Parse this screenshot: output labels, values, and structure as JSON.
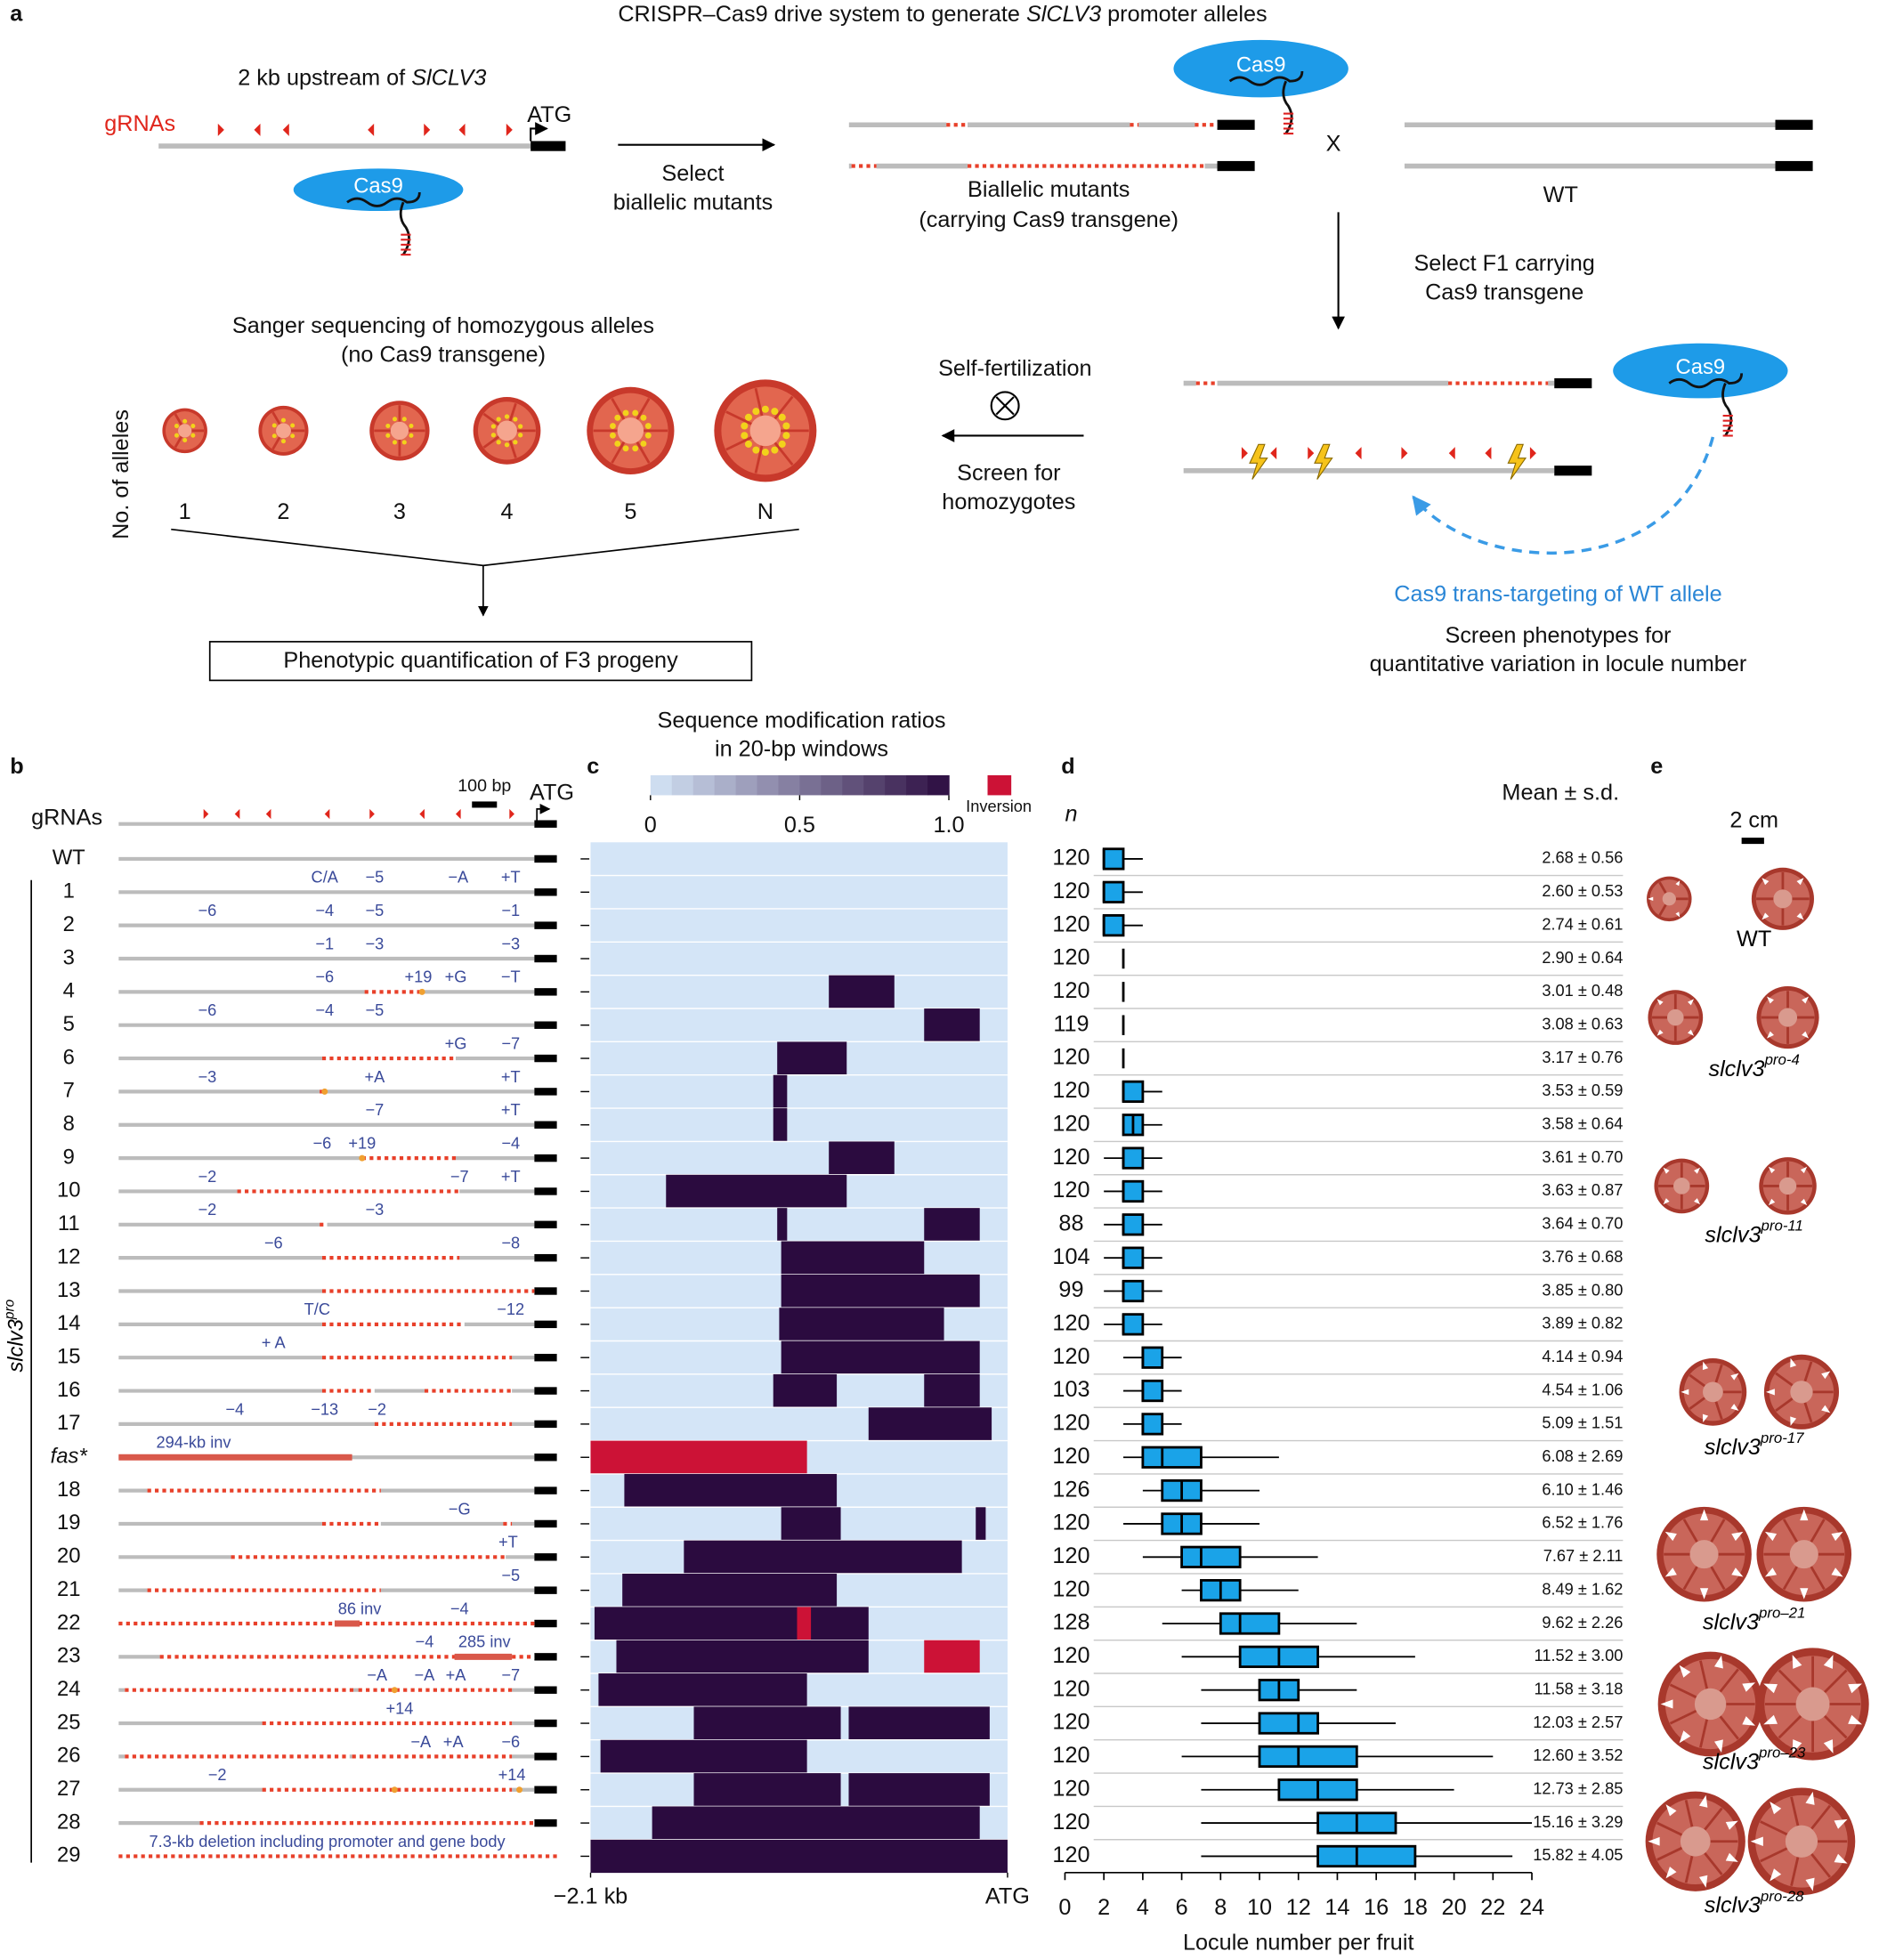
{
  "panel_a": {
    "label": "a",
    "title": [
      "CRISPR–Cas9 drive system to generate ",
      "SlCLV3",
      " promoter alleles"
    ],
    "upstream": [
      "2 kb upstream of ",
      "SlCLV3"
    ],
    "grnas": "gRNAs",
    "atg": "ATG",
    "cas9": "Cas9",
    "select": [
      "Select",
      "biallelic mutants"
    ],
    "biallelic": [
      "Biallelic mutants",
      "(carrying Cas9 transgene)"
    ],
    "cross": "X",
    "wt": "WT",
    "select_f1": [
      "Select F1 carrying",
      "Cas9 transgene"
    ],
    "sanger": [
      "Sanger sequencing of homozygous alleles",
      "(no Cas9 transgene)"
    ],
    "y_label": "No. of alleles",
    "allele_counts": [
      "1",
      "2",
      "3",
      "4",
      "5",
      "N"
    ],
    "quantification": "Phenotypic quantification of F3 progeny",
    "self_fert": "Self-fertilization",
    "screen_homo": [
      "Screen for",
      "homozygotes"
    ],
    "trans_targeting": "Cas9 trans-targeting of WT allele",
    "screen_pheno": [
      "Screen phenotypes for",
      "quantitative variation in locule number"
    ]
  },
  "panel_b": {
    "label": "b",
    "grnas": "gRNAs",
    "scale_bar": "100 bp",
    "atg": "ATG",
    "group_label": [
      "slclv3",
      "pro"
    ],
    "rows": [
      {
        "name": "WT",
        "edits": []
      },
      {
        "name": "1",
        "edits": [
          "C/A",
          "−5",
          "−A",
          "+T"
        ]
      },
      {
        "name": "2",
        "edits": [
          "−6",
          "−4",
          "−5",
          "−1"
        ]
      },
      {
        "name": "3",
        "edits": [
          "−1",
          "−3",
          "−3"
        ]
      },
      {
        "name": "4",
        "edits": [
          "−6",
          "+19",
          "+G",
          "−T"
        ]
      },
      {
        "name": "5",
        "edits": [
          "−6",
          "−4",
          "−5"
        ]
      },
      {
        "name": "6",
        "edits": [
          "+G",
          "−7"
        ]
      },
      {
        "name": "7",
        "edits": [
          "−3",
          "+A",
          "+T"
        ]
      },
      {
        "name": "8",
        "edits": [
          "−7",
          "+T"
        ]
      },
      {
        "name": "9",
        "edits": [
          "−6",
          "+19",
          "−4"
        ]
      },
      {
        "name": "10",
        "edits": [
          "−2",
          "−7",
          "+T"
        ]
      },
      {
        "name": "11",
        "edits": [
          "−2",
          "−3"
        ]
      },
      {
        "name": "12",
        "edits": [
          "−6",
          "−8"
        ]
      },
      {
        "name": "13",
        "edits": []
      },
      {
        "name": "14",
        "edits": [
          "T/C",
          "−12"
        ]
      },
      {
        "name": "15",
        "edits": [
          "+ A"
        ]
      },
      {
        "name": "16",
        "edits": []
      },
      {
        "name": "17",
        "edits": [
          "−4",
          "−13",
          "−2"
        ]
      },
      {
        "name": "fas*",
        "edits": [
          "294-kb inv"
        ]
      },
      {
        "name": "18",
        "edits": []
      },
      {
        "name": "19",
        "edits": [
          "−G"
        ]
      },
      {
        "name": "20",
        "edits": [
          "+T"
        ]
      },
      {
        "name": "21",
        "edits": [
          "−5"
        ]
      },
      {
        "name": "22",
        "edits": [
          "86 inv",
          "−4"
        ]
      },
      {
        "name": "23",
        "edits": [
          "−4",
          "285 inv"
        ]
      },
      {
        "name": "24",
        "edits": [
          "−A",
          "−A",
          "+A",
          "−7"
        ]
      },
      {
        "name": "25",
        "edits": [
          "+14"
        ]
      },
      {
        "name": "26",
        "edits": [
          "−A",
          "+A",
          "−6"
        ]
      },
      {
        "name": "27",
        "edits": [
          "−2",
          "+14"
        ]
      },
      {
        "name": "28",
        "edits": []
      },
      {
        "name": "29",
        "edits": [
          "7.3-kb deletion including promoter and gene body"
        ]
      }
    ]
  },
  "chart_data": [
    {
      "type": "heatmap",
      "label": "c",
      "title": [
        "Sequence modification ratios",
        "in 20-bp windows"
      ],
      "colorbar": {
        "lim": [
          0,
          1
        ],
        "ticks": [
          0,
          0.5,
          {
            "value": 1,
            "label": "1.0"
          }
        ],
        "colors": [
          "#d4e5f7",
          "#2b0b3f"
        ]
      },
      "inversion_label": "Inversion",
      "inversion_color": "#cc1236",
      "xlim": [
        -2.1,
        0
      ],
      "xticks": [
        {
          "value": -2.1,
          "label": "−2.1 kb"
        },
        {
          "value": 0,
          "label": "ATG"
        }
      ],
      "rows": [
        [],
        [],
        [],
        [],
        [
          {
            "start": -0.9,
            "end": -0.57,
            "value": 1
          }
        ],
        [
          {
            "start": -0.42,
            "end": -0.14,
            "value": 1
          }
        ],
        [
          {
            "start": -1.16,
            "end": -0.81,
            "value": 1
          }
        ],
        [
          {
            "start": -1.18,
            "end": -1.11,
            "value": 1
          }
        ],
        [
          {
            "start": -1.18,
            "end": -1.11,
            "value": 1
          }
        ],
        [
          {
            "start": -0.9,
            "end": -0.57,
            "value": 1
          }
        ],
        [
          {
            "start": -1.72,
            "end": -0.81,
            "value": 1
          }
        ],
        [
          {
            "start": -1.16,
            "end": -1.11,
            "value": 1
          },
          {
            "start": -0.42,
            "end": -0.14,
            "value": 1
          }
        ],
        [
          {
            "start": -1.14,
            "end": -0.42,
            "value": 1
          }
        ],
        [
          {
            "start": -1.14,
            "end": -0.14,
            "value": 1
          }
        ],
        [
          {
            "start": -1.15,
            "end": -0.32,
            "value": 1
          }
        ],
        [
          {
            "start": -1.14,
            "end": -0.14,
            "value": 1
          }
        ],
        [
          {
            "start": -1.18,
            "end": -0.86,
            "value": 1
          },
          {
            "start": -0.42,
            "end": -0.14,
            "value": 1
          }
        ],
        [
          {
            "start": -0.7,
            "end": -0.08,
            "value": 1
          }
        ],
        [
          {
            "start": -2.1,
            "end": -1.01,
            "inversion": true
          }
        ],
        [
          {
            "start": -1.93,
            "end": -0.86,
            "value": 1
          }
        ],
        [
          {
            "start": -1.14,
            "end": -0.84,
            "value": 1
          },
          {
            "start": -0.16,
            "end": -0.11,
            "value": 1
          }
        ],
        [
          {
            "start": -1.63,
            "end": -0.23,
            "value": 1
          }
        ],
        [
          {
            "start": -1.94,
            "end": -0.86,
            "value": 1
          }
        ],
        [
          {
            "start": -2.08,
            "end": -0.7,
            "value": 1
          },
          {
            "start": -1.06,
            "end": -0.99,
            "inversion": true
          }
        ],
        [
          {
            "start": -1.97,
            "end": -0.7,
            "value": 1
          },
          {
            "start": -0.42,
            "end": -0.14,
            "inversion": true
          }
        ],
        [
          {
            "start": -2.06,
            "end": -1.01,
            "value": 1
          }
        ],
        [
          {
            "start": -1.58,
            "end": -0.84,
            "value": 1
          },
          {
            "start": -0.8,
            "end": -0.09,
            "value": 1
          }
        ],
        [
          {
            "start": -2.05,
            "end": -1.01,
            "value": 1
          }
        ],
        [
          {
            "start": -1.58,
            "end": -0.84,
            "value": 1
          },
          {
            "start": -0.8,
            "end": -0.09,
            "value": 1
          }
        ],
        [
          {
            "start": -1.79,
            "end": -0.14,
            "value": 1
          }
        ],
        [
          {
            "start": -2.1,
            "end": 0,
            "value": 1
          }
        ]
      ]
    },
    {
      "type": "box",
      "label": "d",
      "n_label": "n",
      "stat_label": "Mean ± s.d.",
      "x_label": "Locule number per fruit",
      "color": "#1aa3e8",
      "xlim": [
        0,
        24
      ],
      "xticks": [
        0,
        2,
        4,
        6,
        8,
        10,
        12,
        14,
        16,
        18,
        20,
        22,
        24
      ],
      "n": [
        120,
        120,
        120,
        120,
        120,
        119,
        120,
        120,
        120,
        120,
        120,
        88,
        104,
        99,
        120,
        120,
        103,
        120,
        120,
        126,
        120,
        120,
        120,
        128,
        120,
        120,
        120,
        120,
        120,
        120,
        120
      ],
      "mean_sd": [
        "2.68 ± 0.56",
        "2.60 ± 0.53",
        "2.74 ± 0.61",
        "2.90 ± 0.64",
        "3.01 ± 0.48",
        "3.08 ± 0.63",
        "3.17 ± 0.76",
        "3.53 ± 0.59",
        "3.58 ± 0.64",
        "3.61 ± 0.70",
        "3.63 ± 0.87",
        "3.64 ± 0.70",
        "3.76 ± 0.68",
        "3.85 ± 0.80",
        "3.89 ± 0.82",
        "4.14 ± 0.94",
        "4.54 ± 1.06",
        "5.09 ± 1.51",
        "6.08 ± 2.69",
        "6.10 ± 1.46",
        "6.52 ± 1.76",
        "7.67 ± 2.11",
        "8.49 ± 1.62",
        "9.62 ± 2.26",
        "11.52 ± 3.00",
        "11.58 ± 3.18",
        "12.03 ± 2.57",
        "12.60 ± 3.52",
        "12.73 ± 2.85",
        "15.16 ± 3.29",
        "15.82 ± 4.05"
      ],
      "boxes": {
        "whisker_low": [
          2,
          2,
          2,
          3,
          3,
          3,
          3,
          3,
          3,
          2,
          2,
          2,
          2,
          2,
          2,
          3,
          3,
          3,
          3,
          4,
          3,
          4,
          6,
          5,
          6,
          7,
          7,
          6,
          7,
          7,
          7
        ],
        "q1": [
          2,
          2,
          2,
          3,
          3,
          3,
          3,
          3,
          3,
          3,
          3,
          3,
          3,
          3,
          3,
          4,
          4,
          4,
          4,
          5,
          5,
          6,
          7,
          8,
          9,
          10,
          10,
          10,
          11,
          13,
          13
        ],
        "median": [
          2,
          2,
          2,
          3,
          3,
          3,
          3,
          3,
          3.5,
          3,
          3,
          3,
          3,
          3,
          3,
          4,
          4,
          4,
          5,
          6,
          6,
          7,
          8,
          9,
          11,
          11,
          12,
          12,
          13,
          15,
          15
        ],
        "q3": [
          3,
          3,
          3,
          3,
          3,
          3,
          3,
          4,
          4,
          4,
          4,
          4,
          4,
          4,
          4,
          5,
          5,
          5,
          7,
          7,
          7,
          9,
          9,
          11,
          13,
          12,
          13,
          15,
          15,
          17,
          18
        ],
        "whisker_high": [
          4,
          4,
          4,
          3,
          3,
          3,
          3,
          5,
          5,
          5,
          5,
          5,
          5,
          5,
          5,
          6,
          6,
          6,
          11,
          10,
          10,
          13,
          12,
          15,
          18,
          15,
          17,
          22,
          20,
          24,
          23
        ]
      }
    }
  ],
  "panel_e": {
    "label": "e",
    "scale_bar": "2 cm",
    "photo_labels": [
      [
        "WT"
      ],
      [
        "slclv3",
        "pro-4"
      ],
      [
        "slclv3",
        "pro-11"
      ],
      [
        "slclv3",
        "pro-17"
      ],
      [
        "slclv3",
        "pro–21"
      ],
      [
        "slclv3",
        "pro–23"
      ],
      [
        "slclv3",
        "pro-28"
      ]
    ]
  }
}
